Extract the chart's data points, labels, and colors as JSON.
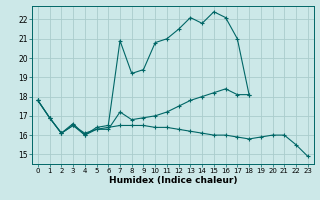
{
  "title": "",
  "xlabel": "Humidex (Indice chaleur)",
  "bg_color": "#cce8e8",
  "grid_color": "#aacccc",
  "line_color": "#006666",
  "xlim": [
    -0.5,
    23.5
  ],
  "ylim": [
    14.5,
    22.7
  ],
  "xticks": [
    0,
    1,
    2,
    3,
    4,
    5,
    6,
    7,
    8,
    9,
    10,
    11,
    12,
    13,
    14,
    15,
    16,
    17,
    18,
    19,
    20,
    21,
    22,
    23
  ],
  "yticks": [
    15,
    16,
    17,
    18,
    19,
    20,
    21,
    22
  ],
  "series": [
    {
      "x": [
        0,
        1,
        2,
        3,
        4,
        5,
        6,
        7,
        8,
        9,
        10,
        11,
        12,
        13,
        14,
        15,
        16,
        17,
        18
      ],
      "y": [
        17.8,
        16.9,
        16.1,
        16.6,
        16.0,
        16.4,
        16.5,
        20.9,
        19.2,
        19.4,
        20.8,
        21.0,
        21.5,
        22.1,
        21.8,
        22.4,
        22.1,
        21.0,
        18.1
      ]
    },
    {
      "x": [
        0,
        1,
        2,
        3,
        4,
        5,
        6,
        7,
        8,
        9,
        10,
        11,
        12,
        13,
        14,
        15,
        16,
        17,
        18
      ],
      "y": [
        17.8,
        16.9,
        16.1,
        16.5,
        16.0,
        16.3,
        16.3,
        17.2,
        16.8,
        16.9,
        17.0,
        17.2,
        17.5,
        17.8,
        18.0,
        18.2,
        18.4,
        18.1,
        18.1
      ]
    },
    {
      "x": [
        0,
        1,
        2,
        3,
        4,
        5,
        6,
        7,
        8,
        9,
        10,
        11,
        12,
        13,
        14,
        15,
        16,
        17,
        18,
        19,
        20,
        21,
        22,
        23
      ],
      "y": [
        17.8,
        16.9,
        16.1,
        16.5,
        16.1,
        16.3,
        16.4,
        16.5,
        16.5,
        16.5,
        16.4,
        16.4,
        16.3,
        16.2,
        16.1,
        16.0,
        16.0,
        15.9,
        15.8,
        15.9,
        16.0,
        16.0,
        15.5,
        14.9
      ]
    }
  ]
}
